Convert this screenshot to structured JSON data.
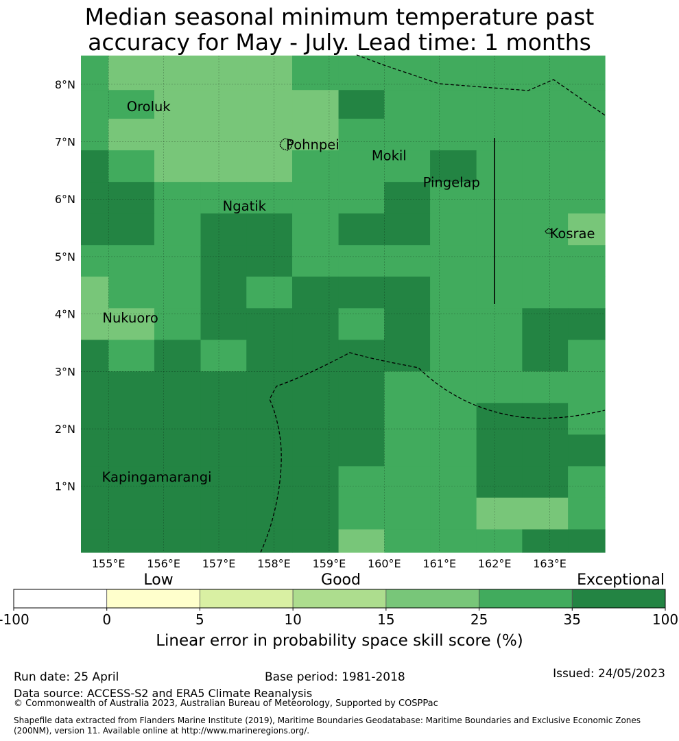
{
  "title": {
    "line1": "Median seasonal minimum temperature past",
    "line2": "accuracy for May - July. Lead time: 1 months"
  },
  "map": {
    "lon_range": [
      154.5,
      164.0
    ],
    "lat_range": [
      -0.15,
      8.5
    ],
    "lon_ticks": [
      {
        "value": 155,
        "label": "155°E"
      },
      {
        "value": 156,
        "label": "156°E"
      },
      {
        "value": 157,
        "label": "157°E"
      },
      {
        "value": 158,
        "label": "158°E"
      },
      {
        "value": 159,
        "label": "159°E"
      },
      {
        "value": 160,
        "label": "160°E"
      },
      {
        "value": 161,
        "label": "161°E"
      },
      {
        "value": 162,
        "label": "162°E"
      },
      {
        "value": 163,
        "label": "163°E"
      }
    ],
    "lat_ticks": [
      {
        "value": 1,
        "label": "1°N"
      },
      {
        "value": 2,
        "label": "2°N"
      },
      {
        "value": 3,
        "label": "3°N"
      },
      {
        "value": 4,
        "label": "4°N"
      },
      {
        "value": 5,
        "label": "5°N"
      },
      {
        "value": 6,
        "label": "6°N"
      },
      {
        "value": 7,
        "label": "7°N"
      },
      {
        "value": 8,
        "label": "8°N"
      }
    ],
    "grid_color_classes": {
      "3": "#78c679",
      "4": "#41ab5d",
      "5": "#238443"
    },
    "grid_row_lats": [
      8.5,
      7.9,
      7.4,
      6.85,
      6.3,
      5.75,
      5.2,
      4.65,
      4.1,
      3.55,
      3.0,
      2.45,
      1.9,
      1.35,
      0.8,
      0.25,
      -0.15
    ],
    "grid_col_lons": [
      154.5,
      155.0,
      155.83,
      156.67,
      157.5,
      158.33,
      159.17,
      160.0,
      160.83,
      161.67,
      162.5,
      163.33,
      164.0
    ],
    "grid": [
      [
        4,
        3,
        3,
        3,
        3,
        4,
        4,
        4,
        4,
        4,
        4,
        4
      ],
      [
        4,
        4,
        3,
        3,
        3,
        3,
        5,
        4,
        4,
        4,
        4,
        4
      ],
      [
        4,
        3,
        3,
        3,
        3,
        3,
        4,
        4,
        4,
        4,
        4,
        4
      ],
      [
        5,
        4,
        3,
        3,
        3,
        4,
        4,
        4,
        5,
        4,
        4,
        4
      ],
      [
        5,
        5,
        4,
        4,
        4,
        4,
        4,
        5,
        4,
        4,
        4,
        4
      ],
      [
        5,
        5,
        4,
        5,
        5,
        4,
        5,
        5,
        4,
        4,
        4,
        3
      ],
      [
        4,
        4,
        4,
        5,
        5,
        4,
        4,
        4,
        4,
        4,
        4,
        4
      ],
      [
        3,
        4,
        4,
        5,
        4,
        5,
        5,
        5,
        4,
        4,
        4,
        4
      ],
      [
        3,
        3,
        4,
        5,
        5,
        5,
        4,
        5,
        4,
        4,
        5,
        5
      ],
      [
        5,
        4,
        5,
        4,
        5,
        5,
        5,
        5,
        4,
        4,
        5,
        4
      ],
      [
        5,
        5,
        5,
        5,
        5,
        5,
        5,
        4,
        4,
        4,
        4,
        4
      ],
      [
        5,
        5,
        5,
        5,
        5,
        5,
        5,
        4,
        4,
        5,
        5,
        4
      ],
      [
        5,
        5,
        5,
        5,
        5,
        5,
        5,
        4,
        4,
        5,
        5,
        5
      ],
      [
        5,
        5,
        5,
        5,
        5,
        5,
        4,
        4,
        4,
        5,
        5,
        4
      ],
      [
        5,
        5,
        5,
        5,
        5,
        5,
        4,
        4,
        4,
        3,
        3,
        4
      ],
      [
        5,
        5,
        5,
        5,
        5,
        5,
        3,
        4,
        4,
        4,
        5,
        5
      ]
    ],
    "islands": [
      {
        "name": "Oroluk",
        "lon": 155.33,
        "lat": 7.53
      },
      {
        "name": "Pohnpei",
        "lon": 158.22,
        "lat": 6.87
      },
      {
        "name": "Mokil",
        "lon": 159.77,
        "lat": 6.68
      },
      {
        "name": "Pingelap",
        "lon": 160.7,
        "lat": 6.21
      },
      {
        "name": "Ngatik",
        "lon": 157.07,
        "lat": 5.8
      },
      {
        "name": "Kosrae",
        "lon": 163.0,
        "lat": 5.32
      },
      {
        "name": "Nukuoro",
        "lon": 154.89,
        "lat": 3.85
      },
      {
        "name": "Kapingamarangi",
        "lon": 154.88,
        "lat": 1.08
      }
    ]
  },
  "colorbar": {
    "colors": [
      "#ffffff",
      "#ffffcc",
      "#d9f0a3",
      "#addd8e",
      "#78c679",
      "#41ab5d",
      "#238443"
    ],
    "ticks": [
      "-100",
      "0",
      "5",
      "10",
      "15",
      "25",
      "35",
      "100"
    ],
    "categories": [
      "Low",
      "Good",
      "Exceptional"
    ],
    "label": "Linear error in probability space skill score (%)"
  },
  "footer": {
    "run_date": "Run date: 25 April",
    "base_period": "Base period: 1981-2018",
    "issued": "Issued: 24/05/2023",
    "data_source": "Data source: ACCESS-S2 and ERA5 Climate Reanalysis",
    "copyright": "© Commonwealth of Australia 2023, Australian Bureau of Meteorology, Supported by COSPPac",
    "shapefile": "Shapefile data extracted from Flanders Marine Institute (2019), Maritime Boundaries Geodatabase: Maritime Boundaries and Exclusive Economic Zones (200NM), version 11. Available online at http://www.marineregions.org/."
  }
}
